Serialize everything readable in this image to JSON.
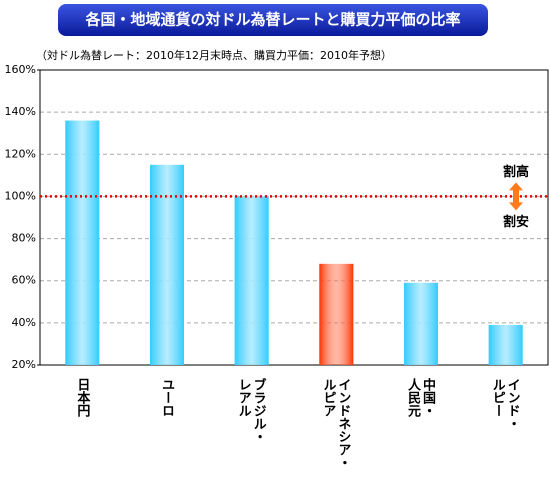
{
  "chart_data": {
    "type": "bar",
    "title": "各国・地域通貨の対ドル為替レートと購買力平価の比率",
    "subtitle": "（対ドル為替レート：2010年12月末時点、購買力平価：2010年予想）",
    "categories": [
      "日本円",
      "ユーロ",
      "ブラジル・レアル",
      "インドネシア・ルピア",
      "中国・人民元",
      "インド・ルピー"
    ],
    "values": [
      136,
      115,
      100,
      68,
      59,
      39
    ],
    "colors": [
      "#33ccff",
      "#33ccff",
      "#33ccff",
      "#ff3300",
      "#33ccff",
      "#33ccff"
    ],
    "ylim": [
      20,
      160
    ],
    "yticks": [
      {
        "value": 20,
        "label": "20%"
      },
      {
        "value": 40,
        "label": "40%"
      },
      {
        "value": 60,
        "label": "60%"
      },
      {
        "value": 80,
        "label": "80%"
      },
      {
        "value": 100,
        "label": "100%"
      },
      {
        "value": 120,
        "label": "120%"
      },
      {
        "value": 140,
        "label": "140%"
      },
      {
        "value": 160,
        "label": "160%"
      }
    ],
    "grid": true,
    "reference_line": 100,
    "annotations": [
      "割高",
      "割安"
    ]
  }
}
